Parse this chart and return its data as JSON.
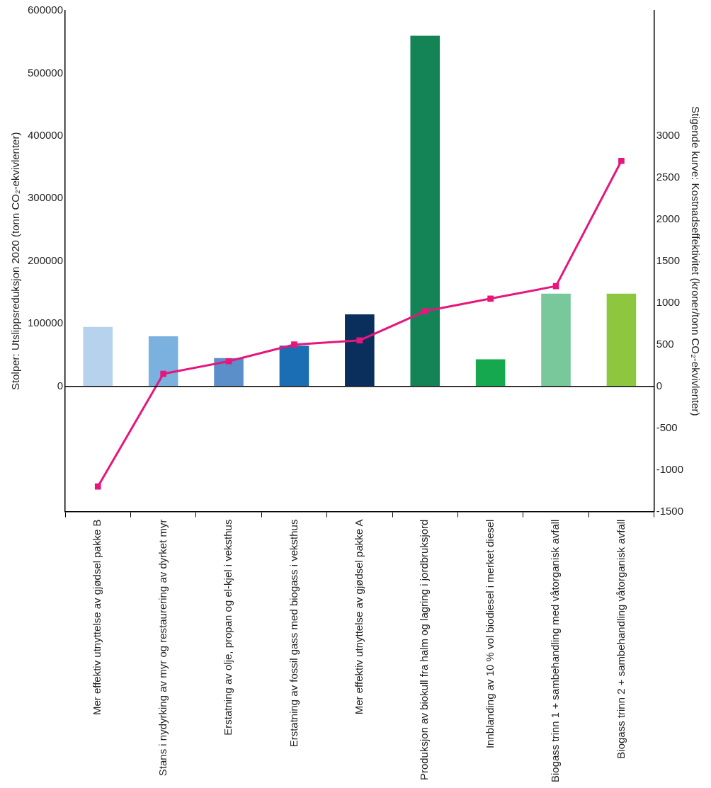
{
  "chart_data": {
    "type": "bar",
    "ylabel": "Stolper: Utslippsreduksjon 2020 (tonn CO₂-ekvivlenter)",
    "y2label": "Stigende kurve: Kostnadseffektivitet (kroner/tonn CO₂-ekvivlenter)",
    "categories": [
      "Mer effektiv utnyttelse av gjødsel pakke B",
      "Stans i nydyrking av myr og restaurering av dyrket myr",
      "Erstatning av olje, propan og el-kjel i veksthus",
      "Erstatning av fossil gass med biogass i veksthus",
      "Mer effektiv utnyttelse av gjødsel pakke A",
      "Produksjon av biokull fra halm og lagring i jordbruksjord",
      "Innblanding av 10 % vol biodiesel i merket diesel",
      "Biogass trinn 1 + sambehandling med våtorganisk avfall",
      "Biogass trinn 2 + sambehandling våtorganisk avfall"
    ],
    "series": [
      {
        "colors": [
          "#b6d2ec",
          "#7ab1df",
          "#5b8fc9",
          "#1b6db4",
          "#0b2f5c",
          "#148355",
          "#16a84e",
          "#79c89b",
          "#8dc63f"
        ],
        "values": [
          95000,
          80000,
          45000,
          65000,
          115000,
          560000,
          43000,
          148000,
          148000
        ]
      },
      {
        "type": "line",
        "axis": "y2",
        "color": "#e5177d",
        "values": [
          -1200,
          150,
          300,
          500,
          550,
          900,
          1050,
          1200,
          2700
        ]
      }
    ],
    "ylim": [
      -200000,
      600000
    ],
    "yticks": [
      0,
      100000,
      200000,
      300000,
      400000,
      500000,
      600000
    ],
    "y2lim": [
      -1500,
      4500
    ],
    "y2ticks": [
      -1500,
      -1000,
      -500,
      0,
      500,
      1000,
      1500,
      2000,
      2500,
      3000
    ],
    "ref_lines": [
      {
        "axis": "y",
        "value": 0,
        "color": "#000000"
      }
    ],
    "marker": "square",
    "line_style": "solid",
    "legend": false,
    "grid": false
  }
}
